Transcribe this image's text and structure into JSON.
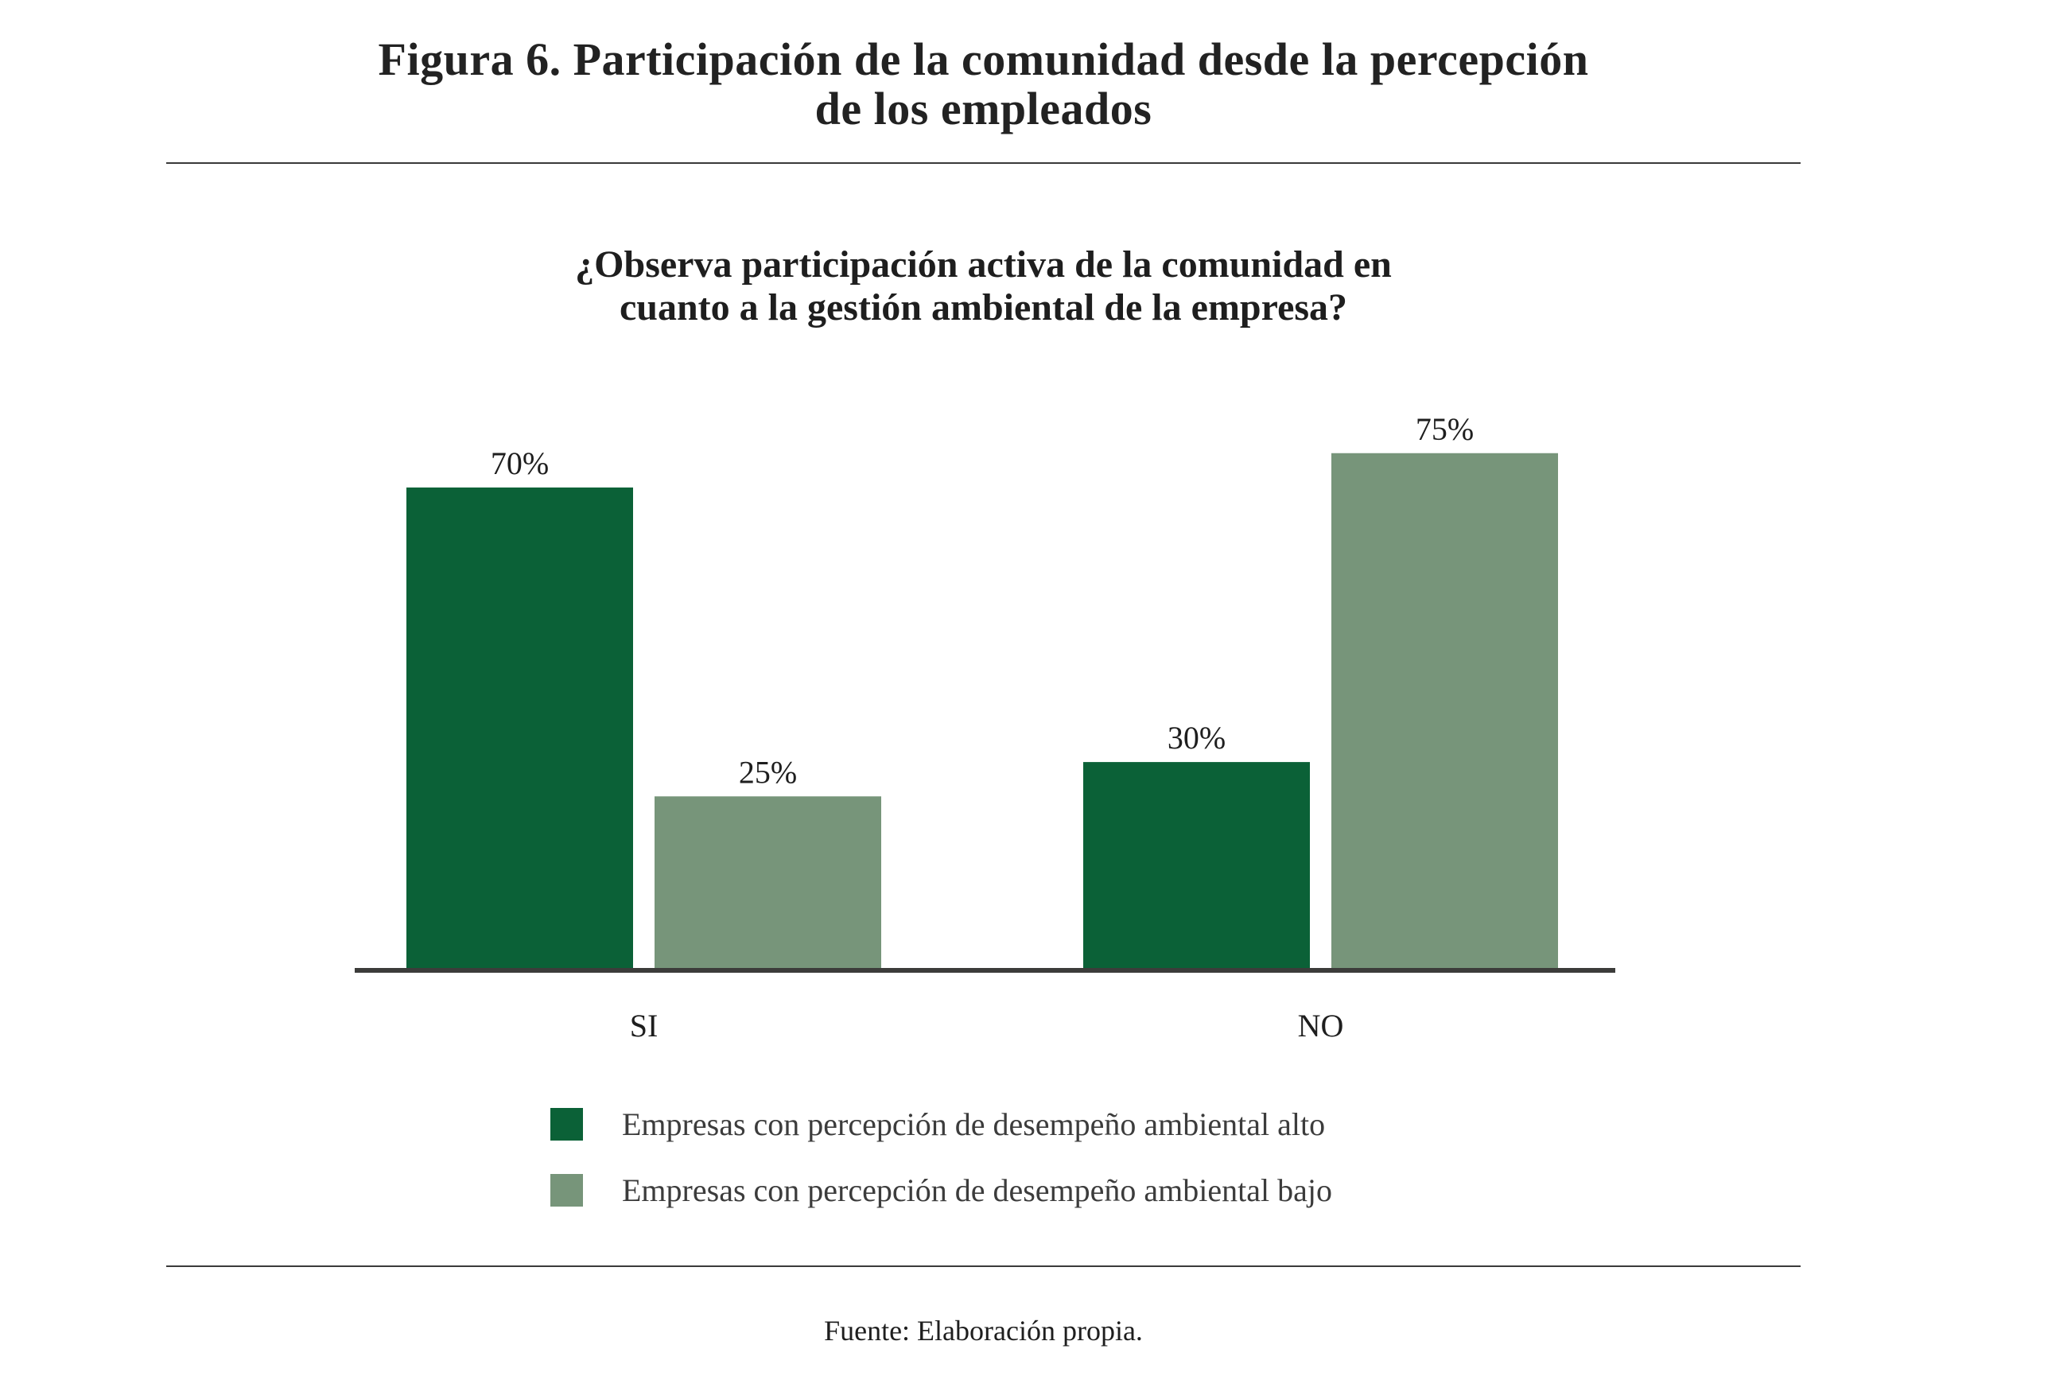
{
  "figure": {
    "title_line1": "Figura 6. Participación de la comunidad desde la percepción",
    "title_line2": "de los empleados",
    "source": "Fuente: Elaboración propia."
  },
  "colors": {
    "alto": "#0b6137",
    "bajo": "#77957a",
    "axis": "#3c3c3a"
  },
  "chart_data": {
    "type": "bar",
    "title": "¿Observa participación activa de la comunidad en cuanto a la gestión ambiental de la empresa?",
    "title_line1": "¿Observa participación activa de la comunidad en",
    "title_line2": "cuanto a la gestión ambiental de la empresa?",
    "categories": [
      "SI",
      "NO"
    ],
    "series": [
      {
        "name": "Empresas con percepción de desempeño ambiental alto",
        "values": [
          70,
          30
        ],
        "labels": [
          "70%",
          "30%"
        ]
      },
      {
        "name": "Empresas con percepción de desempeño ambiental bajo",
        "values": [
          25,
          75
        ],
        "labels": [
          "25%",
          "75%"
        ]
      }
    ],
    "xlabel": "",
    "ylabel": "",
    "ylim": [
      0,
      100
    ],
    "unit": "%",
    "grid": false,
    "y_axis_visible": false,
    "legend_position": "bottom"
  }
}
